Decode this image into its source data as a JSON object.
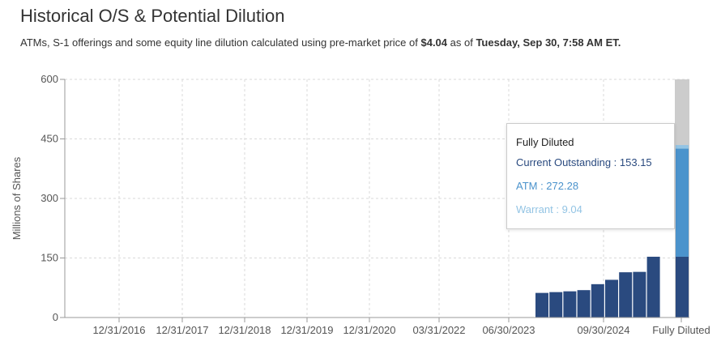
{
  "header": {
    "title": "Historical O/S & Potential Dilution",
    "subtitle_prefix": "ATMs, S-1 offerings and some equity line dilution calculated using pre-market price of ",
    "price": "$4.04",
    "subtitle_mid": " as of ",
    "datetime": "Tuesday, Sep 30, 7:58 AM ET."
  },
  "tooltip": {
    "title": "Fully Diluted",
    "rows": [
      {
        "label": "Current Outstanding : 153.15",
        "color": "#2a4a7f"
      },
      {
        "label": "ATM : 272.28",
        "color": "#4b93cc"
      },
      {
        "label": "Warrant : 9.04",
        "color": "#93c4e4"
      }
    ]
  },
  "chart_data": {
    "type": "bar",
    "ylabel": "Millions of Shares",
    "ylim": [
      0,
      600
    ],
    "yticks": [
      0,
      150,
      300,
      450,
      600
    ],
    "grid": true,
    "xtick_labels": [
      "12/31/2016",
      "12/31/2017",
      "12/31/2018",
      "12/31/2019",
      "12/31/2020",
      "03/31/2022",
      "06/30/2023",
      "09/30/2024",
      "Fully Diluted"
    ],
    "historical_bars": [
      62,
      64,
      66,
      69,
      84,
      95,
      114,
      115,
      153.15
    ],
    "fully_diluted": {
      "label": "Fully Diluted",
      "series": [
        {
          "name": "Current Outstanding",
          "value": 153.15,
          "color": "#2a4a7f"
        },
        {
          "name": "ATM",
          "value": 272.28,
          "color": "#4b93cc"
        },
        {
          "name": "Warrant",
          "value": 9.04,
          "color": "#93c4e4"
        }
      ],
      "highlight_color": "#cccccc"
    },
    "bar_color": "#2a4a7f"
  }
}
